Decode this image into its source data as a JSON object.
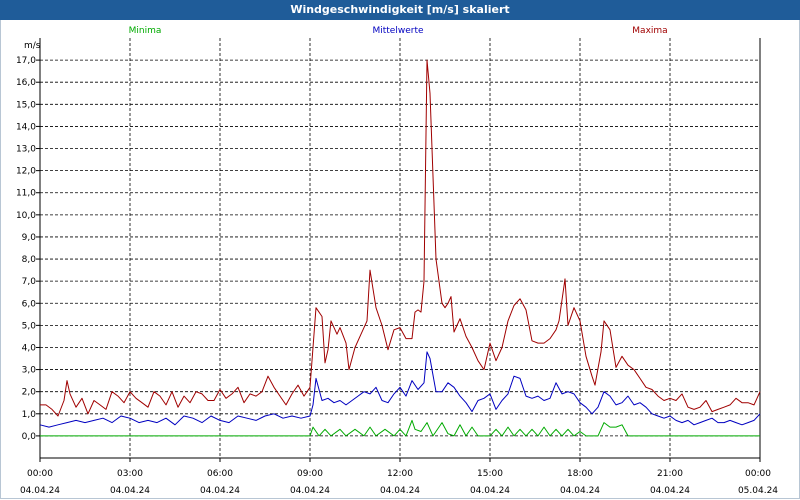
{
  "window": {
    "title": "Windgeschwindigkeit [m/s] skaliert"
  },
  "colors": {
    "min": "#00aa00",
    "avg": "#0000c0",
    "max": "#a00000",
    "titlebar": "#1f5c99"
  },
  "chart_data": {
    "type": "line",
    "title": "Windgeschwindigkeit [m/s] skaliert",
    "ylabel": "m/s",
    "xlabel": "",
    "ylim": [
      -1.0,
      18.0
    ],
    "xlim": [
      0,
      24
    ],
    "grid": true,
    "legend": [
      "Minima",
      "Mittelwerte",
      "Maxima"
    ],
    "y_ticks": [
      "0,0",
      "1,0",
      "2,0",
      "3,0",
      "4,0",
      "5,0",
      "6,0",
      "7,0",
      "8,0",
      "9,0",
      "10,0",
      "11,0",
      "12,0",
      "13,0",
      "14,0",
      "15,0",
      "16,0",
      "17,0"
    ],
    "x_ticks": [
      {
        "t": 0,
        "time": "00:00",
        "date": "04.04.24"
      },
      {
        "t": 3,
        "time": "03:00",
        "date": "04.04.24"
      },
      {
        "t": 6,
        "time": "06:00",
        "date": "04.04.24"
      },
      {
        "t": 9,
        "time": "09:00",
        "date": "04.04.24"
      },
      {
        "t": 12,
        "time": "12:00",
        "date": "04.04.24"
      },
      {
        "t": 15,
        "time": "15:00",
        "date": "04.04.24"
      },
      {
        "t": 18,
        "time": "18:00",
        "date": "04.04.24"
      },
      {
        "t": 21,
        "time": "21:00",
        "date": "04.04.24"
      },
      {
        "t": 24,
        "time": "00:00",
        "date": "05.04.24"
      }
    ],
    "series": [
      {
        "name": "Maxima",
        "color": "#a00000",
        "points": [
          [
            0,
            1.4
          ],
          [
            0.2,
            1.4
          ],
          [
            0.4,
            1.2
          ],
          [
            0.6,
            0.9
          ],
          [
            0.8,
            1.6
          ],
          [
            0.9,
            2.5
          ],
          [
            1.0,
            1.9
          ],
          [
            1.2,
            1.3
          ],
          [
            1.4,
            1.7
          ],
          [
            1.6,
            1.0
          ],
          [
            1.8,
            1.6
          ],
          [
            2.0,
            1.4
          ],
          [
            2.2,
            1.2
          ],
          [
            2.4,
            2.0
          ],
          [
            2.6,
            1.8
          ],
          [
            2.8,
            1.5
          ],
          [
            3.0,
            2.0
          ],
          [
            3.2,
            1.7
          ],
          [
            3.4,
            1.5
          ],
          [
            3.6,
            1.3
          ],
          [
            3.8,
            2.0
          ],
          [
            4.0,
            1.8
          ],
          [
            4.2,
            1.4
          ],
          [
            4.4,
            2.0
          ],
          [
            4.6,
            1.3
          ],
          [
            4.8,
            1.8
          ],
          [
            5.0,
            1.5
          ],
          [
            5.2,
            2.0
          ],
          [
            5.4,
            1.9
          ],
          [
            5.6,
            1.6
          ],
          [
            5.8,
            1.6
          ],
          [
            6.0,
            2.1
          ],
          [
            6.2,
            1.7
          ],
          [
            6.4,
            1.9
          ],
          [
            6.6,
            2.2
          ],
          [
            6.8,
            1.5
          ],
          [
            7.0,
            1.9
          ],
          [
            7.2,
            1.8
          ],
          [
            7.4,
            2.0
          ],
          [
            7.6,
            2.7
          ],
          [
            7.8,
            2.2
          ],
          [
            8.0,
            1.8
          ],
          [
            8.2,
            1.4
          ],
          [
            8.4,
            1.9
          ],
          [
            8.6,
            2.3
          ],
          [
            8.8,
            1.8
          ],
          [
            9.0,
            2.2
          ],
          [
            9.1,
            4.0
          ],
          [
            9.2,
            5.8
          ],
          [
            9.4,
            5.4
          ],
          [
            9.5,
            3.3
          ],
          [
            9.6,
            3.9
          ],
          [
            9.7,
            5.2
          ],
          [
            9.9,
            4.6
          ],
          [
            10.0,
            4.9
          ],
          [
            10.2,
            4.2
          ],
          [
            10.3,
            3.0
          ],
          [
            10.5,
            4.0
          ],
          [
            10.7,
            4.6
          ],
          [
            10.9,
            5.2
          ],
          [
            11.0,
            7.5
          ],
          [
            11.2,
            5.8
          ],
          [
            11.4,
            5.0
          ],
          [
            11.6,
            3.9
          ],
          [
            11.8,
            4.8
          ],
          [
            12.0,
            4.9
          ],
          [
            12.2,
            4.4
          ],
          [
            12.4,
            4.4
          ],
          [
            12.5,
            5.6
          ],
          [
            12.6,
            5.7
          ],
          [
            12.7,
            5.6
          ],
          [
            12.8,
            7.0
          ],
          [
            12.9,
            17.0
          ],
          [
            13.0,
            15.5
          ],
          [
            13.2,
            8.0
          ],
          [
            13.4,
            6.0
          ],
          [
            13.5,
            5.8
          ],
          [
            13.6,
            6.0
          ],
          [
            13.7,
            6.3
          ],
          [
            13.8,
            4.7
          ],
          [
            14.0,
            5.3
          ],
          [
            14.2,
            4.5
          ],
          [
            14.4,
            4.0
          ],
          [
            14.6,
            3.4
          ],
          [
            14.8,
            3.0
          ],
          [
            15.0,
            4.2
          ],
          [
            15.2,
            3.4
          ],
          [
            15.4,
            4.0
          ],
          [
            15.6,
            5.2
          ],
          [
            15.8,
            5.9
          ],
          [
            16.0,
            6.2
          ],
          [
            16.2,
            5.7
          ],
          [
            16.4,
            4.3
          ],
          [
            16.6,
            4.2
          ],
          [
            16.8,
            4.2
          ],
          [
            17.0,
            4.4
          ],
          [
            17.2,
            4.8
          ],
          [
            17.3,
            5.2
          ],
          [
            17.5,
            7.1
          ],
          [
            17.6,
            5.0
          ],
          [
            17.8,
            5.8
          ],
          [
            18.0,
            5.2
          ],
          [
            18.2,
            3.6
          ],
          [
            18.4,
            2.7
          ],
          [
            18.5,
            2.3
          ],
          [
            18.7,
            3.8
          ],
          [
            18.8,
            5.2
          ],
          [
            19.0,
            4.8
          ],
          [
            19.2,
            3.1
          ],
          [
            19.4,
            3.6
          ],
          [
            19.6,
            3.2
          ],
          [
            19.8,
            3.0
          ],
          [
            20.0,
            2.6
          ],
          [
            20.2,
            2.2
          ],
          [
            20.4,
            2.1
          ],
          [
            20.6,
            1.8
          ],
          [
            20.8,
            1.6
          ],
          [
            21.0,
            1.7
          ],
          [
            21.2,
            1.6
          ],
          [
            21.4,
            1.9
          ],
          [
            21.6,
            1.3
          ],
          [
            21.8,
            1.2
          ],
          [
            22.0,
            1.3
          ],
          [
            22.2,
            1.6
          ],
          [
            22.4,
            1.1
          ],
          [
            22.6,
            1.2
          ],
          [
            22.8,
            1.3
          ],
          [
            23.0,
            1.4
          ],
          [
            23.2,
            1.7
          ],
          [
            23.4,
            1.5
          ],
          [
            23.6,
            1.5
          ],
          [
            23.8,
            1.4
          ],
          [
            24.0,
            2.0
          ]
        ]
      },
      {
        "name": "Mittelwerte",
        "color": "#0000c0",
        "points": [
          [
            0,
            0.5
          ],
          [
            0.3,
            0.4
          ],
          [
            0.6,
            0.5
          ],
          [
            0.9,
            0.6
          ],
          [
            1.2,
            0.7
          ],
          [
            1.5,
            0.6
          ],
          [
            1.8,
            0.7
          ],
          [
            2.1,
            0.8
          ],
          [
            2.4,
            0.6
          ],
          [
            2.7,
            0.9
          ],
          [
            3.0,
            0.8
          ],
          [
            3.3,
            0.6
          ],
          [
            3.6,
            0.7
          ],
          [
            3.9,
            0.6
          ],
          [
            4.2,
            0.8
          ],
          [
            4.5,
            0.5
          ],
          [
            4.8,
            0.9
          ],
          [
            5.1,
            0.8
          ],
          [
            5.4,
            0.6
          ],
          [
            5.7,
            0.9
          ],
          [
            6.0,
            0.7
          ],
          [
            6.3,
            0.6
          ],
          [
            6.6,
            0.9
          ],
          [
            6.9,
            0.8
          ],
          [
            7.2,
            0.7
          ],
          [
            7.5,
            0.9
          ],
          [
            7.8,
            1.0
          ],
          [
            8.1,
            0.8
          ],
          [
            8.4,
            0.9
          ],
          [
            8.7,
            0.8
          ],
          [
            9.0,
            0.9
          ],
          [
            9.1,
            1.4
          ],
          [
            9.2,
            2.6
          ],
          [
            9.4,
            1.6
          ],
          [
            9.6,
            1.7
          ],
          [
            9.8,
            1.5
          ],
          [
            10.0,
            1.6
          ],
          [
            10.2,
            1.4
          ],
          [
            10.4,
            1.6
          ],
          [
            10.6,
            1.8
          ],
          [
            10.8,
            2.0
          ],
          [
            11.0,
            1.9
          ],
          [
            11.2,
            2.2
          ],
          [
            11.4,
            1.6
          ],
          [
            11.6,
            1.5
          ],
          [
            11.8,
            1.9
          ],
          [
            12.0,
            2.2
          ],
          [
            12.2,
            1.8
          ],
          [
            12.4,
            2.5
          ],
          [
            12.6,
            2.1
          ],
          [
            12.8,
            2.4
          ],
          [
            12.9,
            3.8
          ],
          [
            13.0,
            3.5
          ],
          [
            13.2,
            2.0
          ],
          [
            13.4,
            2.0
          ],
          [
            13.6,
            2.4
          ],
          [
            13.8,
            2.2
          ],
          [
            14.0,
            1.8
          ],
          [
            14.2,
            1.5
          ],
          [
            14.4,
            1.1
          ],
          [
            14.6,
            1.6
          ],
          [
            14.8,
            1.7
          ],
          [
            15.0,
            1.9
          ],
          [
            15.2,
            1.2
          ],
          [
            15.4,
            1.6
          ],
          [
            15.6,
            1.9
          ],
          [
            15.8,
            2.7
          ],
          [
            16.0,
            2.6
          ],
          [
            16.2,
            1.8
          ],
          [
            16.4,
            1.7
          ],
          [
            16.6,
            1.8
          ],
          [
            16.8,
            1.6
          ],
          [
            17.0,
            1.7
          ],
          [
            17.2,
            2.4
          ],
          [
            17.4,
            1.9
          ],
          [
            17.6,
            2.0
          ],
          [
            17.8,
            1.9
          ],
          [
            18.0,
            1.5
          ],
          [
            18.2,
            1.3
          ],
          [
            18.4,
            1.0
          ],
          [
            18.6,
            1.3
          ],
          [
            18.8,
            2.0
          ],
          [
            19.0,
            1.8
          ],
          [
            19.2,
            1.4
          ],
          [
            19.4,
            1.5
          ],
          [
            19.6,
            1.8
          ],
          [
            19.8,
            1.4
          ],
          [
            20.0,
            1.5
          ],
          [
            20.2,
            1.3
          ],
          [
            20.4,
            1.0
          ],
          [
            20.6,
            0.9
          ],
          [
            20.8,
            0.8
          ],
          [
            21.0,
            0.9
          ],
          [
            21.2,
            0.7
          ],
          [
            21.4,
            0.6
          ],
          [
            21.6,
            0.7
          ],
          [
            21.8,
            0.5
          ],
          [
            22.0,
            0.6
          ],
          [
            22.2,
            0.7
          ],
          [
            22.4,
            0.8
          ],
          [
            22.6,
            0.6
          ],
          [
            22.8,
            0.6
          ],
          [
            23.0,
            0.7
          ],
          [
            23.2,
            0.6
          ],
          [
            23.4,
            0.5
          ],
          [
            23.6,
            0.6
          ],
          [
            23.8,
            0.7
          ],
          [
            24.0,
            1.0
          ]
        ]
      },
      {
        "name": "Minima",
        "color": "#00aa00",
        "points": [
          [
            0,
            0.0
          ],
          [
            9.0,
            0.0
          ],
          [
            9.1,
            0.4
          ],
          [
            9.3,
            0.0
          ],
          [
            9.5,
            0.3
          ],
          [
            9.7,
            0.0
          ],
          [
            10.0,
            0.3
          ],
          [
            10.2,
            0.0
          ],
          [
            10.5,
            0.3
          ],
          [
            10.8,
            0.0
          ],
          [
            11.0,
            0.4
          ],
          [
            11.2,
            0.0
          ],
          [
            11.5,
            0.3
          ],
          [
            11.8,
            0.0
          ],
          [
            12.0,
            0.3
          ],
          [
            12.2,
            0.0
          ],
          [
            12.4,
            0.7
          ],
          [
            12.5,
            0.3
          ],
          [
            12.7,
            0.2
          ],
          [
            12.9,
            0.6
          ],
          [
            13.1,
            0.0
          ],
          [
            13.4,
            0.6
          ],
          [
            13.6,
            0.1
          ],
          [
            13.8,
            0.0
          ],
          [
            14.0,
            0.5
          ],
          [
            14.2,
            0.0
          ],
          [
            14.4,
            0.4
          ],
          [
            14.6,
            0.0
          ],
          [
            15.0,
            0.0
          ],
          [
            15.2,
            0.3
          ],
          [
            15.4,
            0.0
          ],
          [
            15.6,
            0.4
          ],
          [
            15.8,
            0.0
          ],
          [
            16.0,
            0.3
          ],
          [
            16.2,
            0.0
          ],
          [
            16.4,
            0.3
          ],
          [
            16.6,
            0.0
          ],
          [
            16.8,
            0.4
          ],
          [
            17.0,
            0.0
          ],
          [
            17.2,
            0.3
          ],
          [
            17.4,
            0.0
          ],
          [
            17.6,
            0.3
          ],
          [
            17.8,
            0.0
          ],
          [
            18.0,
            0.2
          ],
          [
            18.2,
            0.0
          ],
          [
            18.4,
            0.0
          ],
          [
            18.6,
            0.0
          ],
          [
            18.8,
            0.6
          ],
          [
            19.0,
            0.4
          ],
          [
            19.2,
            0.4
          ],
          [
            19.4,
            0.5
          ],
          [
            19.6,
            0.0
          ],
          [
            24.0,
            0.0
          ]
        ]
      }
    ]
  }
}
